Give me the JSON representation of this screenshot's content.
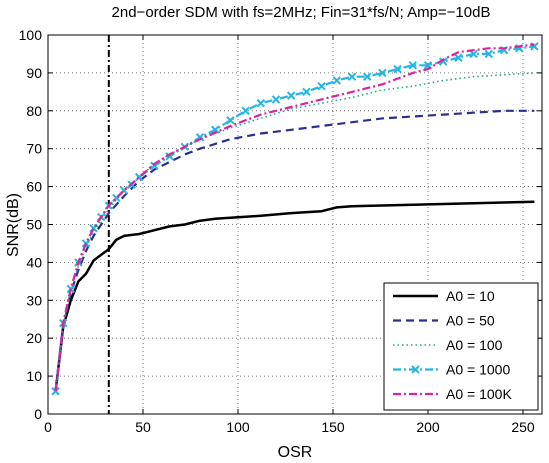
{
  "chart_data": {
    "type": "line",
    "title": "2nd−order SDM with fs=2MHz; Fin=31*fs/N; Amp=−10dB",
    "xlabel": "OSR",
    "ylabel": "SNR(dB)",
    "xlim": [
      0,
      260
    ],
    "ylim": [
      0,
      100
    ],
    "xticks": [
      0,
      50,
      100,
      150,
      200,
      250
    ],
    "yticks": [
      0,
      10,
      20,
      30,
      40,
      50,
      60,
      70,
      80,
      90,
      100
    ],
    "grid": true,
    "legend_position": "bottom-right",
    "vline_x": 32,
    "series": [
      {
        "name": "A0 = 10",
        "color": "#000000",
        "style": "solid",
        "marker": "none",
        "x": [
          4,
          8,
          12,
          16,
          20,
          24,
          28,
          32,
          36,
          40,
          48,
          56,
          64,
          72,
          80,
          88,
          96,
          112,
          128,
          144,
          152,
          160,
          176,
          192,
          208,
          224,
          240,
          256
        ],
        "y": [
          6,
          23,
          30,
          35,
          37,
          40.5,
          42,
          43.5,
          46,
          47,
          47.5,
          48.5,
          49.5,
          50,
          51,
          51.5,
          51.8,
          52.3,
          53,
          53.5,
          54.5,
          54.8,
          55,
          55.2,
          55.4,
          55.6,
          55.8,
          56
        ]
      },
      {
        "name": "A0 = 50",
        "color": "#2b2f8f",
        "style": "dashed",
        "marker": "none",
        "x": [
          4,
          8,
          12,
          16,
          20,
          24,
          28,
          32,
          40,
          48,
          56,
          64,
          72,
          80,
          96,
          112,
          128,
          144,
          160,
          176,
          192,
          208,
          224,
          240,
          256
        ],
        "y": [
          6,
          23,
          32,
          38,
          43,
          47,
          50,
          53,
          57.5,
          61.5,
          64.5,
          66.5,
          68.5,
          70,
          72.5,
          74,
          75,
          76,
          77,
          78,
          78.5,
          79,
          79.5,
          80,
          80
        ]
      },
      {
        "name": "A0 = 100",
        "color": "#20a89a",
        "style": "dotted",
        "marker": "none",
        "x": [
          4,
          8,
          12,
          16,
          20,
          24,
          28,
          32,
          40,
          48,
          56,
          64,
          72,
          80,
          96,
          112,
          128,
          144,
          160,
          176,
          192,
          208,
          224,
          240,
          256
        ],
        "y": [
          6,
          23,
          33,
          39,
          44,
          48,
          51,
          54,
          59,
          62.5,
          66,
          68.5,
          70.5,
          72.5,
          75.5,
          78,
          80.5,
          82,
          83.5,
          85.5,
          86.5,
          88,
          89,
          89.5,
          90
        ]
      },
      {
        "name": "A0 = 1000",
        "color": "#22b5e6",
        "style": "dashdot",
        "marker": "x",
        "x": [
          4,
          8,
          12,
          16,
          20,
          24,
          28,
          32,
          36,
          40,
          44,
          48,
          56,
          64,
          72,
          80,
          88,
          96,
          104,
          112,
          120,
          128,
          136,
          144,
          152,
          160,
          168,
          176,
          184,
          192,
          200,
          208,
          216,
          224,
          232,
          240,
          248,
          256
        ],
        "y": [
          6,
          24,
          33,
          40,
          45,
          49,
          52,
          55,
          57,
          59,
          60.5,
          62.5,
          65.5,
          68,
          70.5,
          73,
          75,
          77.5,
          80,
          82,
          83,
          84,
          85,
          86.5,
          88,
          89,
          89,
          90,
          91,
          92,
          92,
          93,
          94,
          95,
          95,
          96,
          96.5,
          97
        ]
      },
      {
        "name": "A0 = 100K",
        "color": "#e0219f",
        "style": "dashdot",
        "marker": "none",
        "x": [
          4,
          8,
          12,
          16,
          20,
          24,
          28,
          32,
          40,
          48,
          56,
          64,
          72,
          80,
          96,
          112,
          128,
          144,
          160,
          176,
          192,
          200,
          208,
          216,
          224,
          232,
          240,
          248,
          256
        ],
        "y": [
          6,
          24,
          33,
          40,
          45,
          49,
          52,
          55,
          59,
          62.5,
          66,
          68.5,
          70.5,
          72.5,
          76,
          79,
          81,
          83,
          85,
          87,
          90,
          91,
          93.5,
          95.5,
          96,
          96.5,
          96.5,
          97,
          97.5
        ]
      }
    ]
  }
}
